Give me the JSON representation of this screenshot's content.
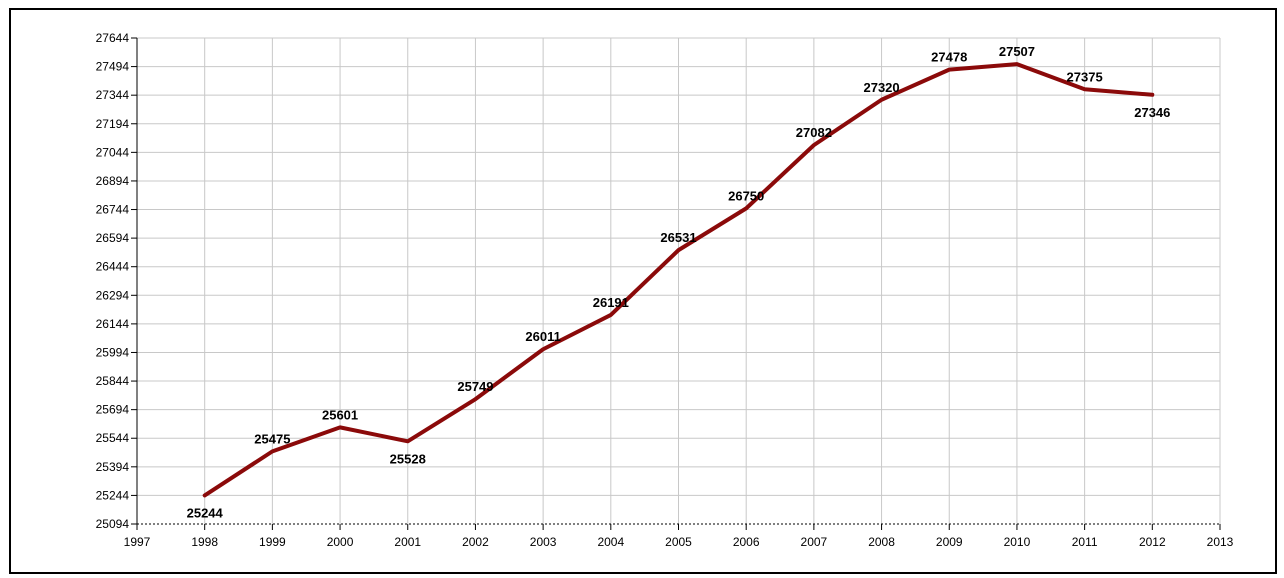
{
  "chart_data": {
    "type": "line",
    "title": "",
    "xlabel": "",
    "ylabel": "",
    "x": [
      1998,
      1999,
      2000,
      2001,
      2002,
      2003,
      2004,
      2005,
      2006,
      2007,
      2008,
      2009,
      2010,
      2011,
      2012
    ],
    "series": [
      {
        "values": [
          25244,
          25475,
          25601,
          25528,
          25749,
          26011,
          26191,
          26531,
          26750,
          27082,
          27320,
          27478,
          27507,
          27375,
          27346
        ],
        "color": "#8b0a0a"
      }
    ],
    "xlim": [
      1997,
      2013
    ],
    "ylim": [
      25094,
      27644
    ],
    "x_ticks": [
      "1997",
      "1998",
      "1999",
      "2000",
      "2001",
      "2002",
      "2003",
      "2004",
      "2005",
      "2006",
      "2007",
      "2008",
      "2009",
      "2010",
      "2011",
      "2012",
      "2013"
    ],
    "y_ticks": [
      "25094",
      "25244",
      "25394",
      "25544",
      "25694",
      "25844",
      "25994",
      "26144",
      "26294",
      "26444",
      "26594",
      "26744",
      "26894",
      "27044",
      "27194",
      "27344",
      "27494",
      "27644"
    ],
    "data_labels": [
      "25244",
      "25475",
      "25601",
      "25528",
      "25749",
      "26011",
      "26191",
      "26531",
      "26750",
      "27082",
      "27320",
      "27478",
      "27507",
      "27375",
      "27346"
    ],
    "grid": true,
    "legend": "none"
  }
}
